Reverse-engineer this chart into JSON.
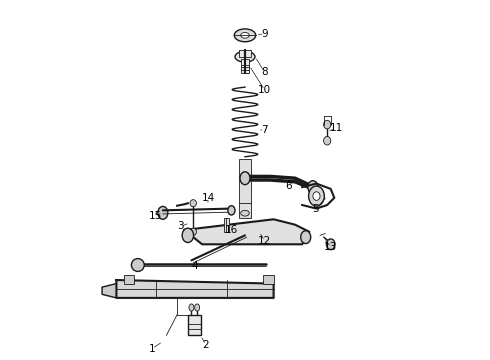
{
  "title": "",
  "bg_color": "#ffffff",
  "line_color": "#1a1a1a",
  "label_color": "#000000",
  "label_fontsize": 7.5,
  "fig_width": 4.9,
  "fig_height": 3.6,
  "dpi": 100
}
